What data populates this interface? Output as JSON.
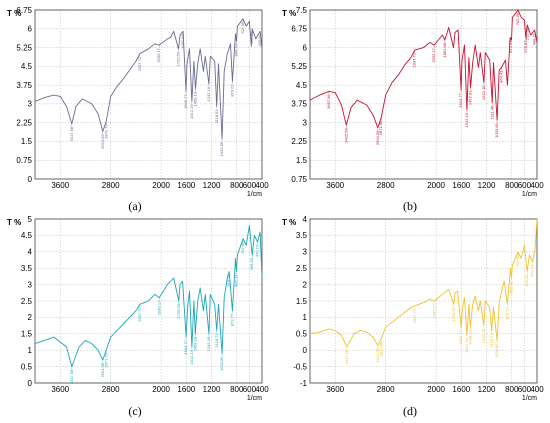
{
  "chart_data": [
    {
      "type": "line",
      "caption": "(a)",
      "ylabel": "T %",
      "xlabel": "1/cm",
      "xlim": [
        4000,
        400
      ],
      "ylim": [
        0,
        6.75
      ],
      "x_ticks": [
        3600,
        2800,
        2000,
        1600,
        1200,
        800,
        600,
        400
      ],
      "y_ticks": [
        0,
        0.75,
        1.5,
        2.25,
        3,
        3.75,
        4.5,
        5.25,
        6,
        6.75
      ],
      "y_tick_labels": [
        "0",
        "0.75",
        "1.5",
        "2.25",
        "3",
        "3.75",
        "4.5",
        "5.25",
        "6",
        "6.75"
      ],
      "color": "#6b6c8e",
      "series": [
        {
          "x": [
            4000,
            3850,
            3700,
            3600,
            3500,
            3417,
            3350,
            3250,
            3100,
            3000,
            2924,
            2871,
            2800,
            2700,
            2600,
            2500,
            2400,
            2340,
            2200,
            2100,
            2030,
            1900,
            1850,
            1800,
            1725,
            1700,
            1651,
            1606,
            1590,
            1550,
            1512,
            1480,
            1455,
            1420,
            1380,
            1330,
            1300,
            1242,
            1220,
            1150,
            1118,
            1090,
            1033,
            1000,
            950,
            900,
            870,
            820,
            804,
            790,
            700,
            650,
            600,
            570,
            555,
            500,
            430,
            400
          ],
          "y": [
            3.1,
            3.25,
            3.35,
            3.3,
            2.9,
            2.2,
            2.9,
            3.2,
            3.0,
            2.6,
            1.9,
            2.3,
            3.3,
            3.7,
            4.0,
            4.35,
            4.7,
            5.0,
            5.2,
            5.4,
            5.35,
            5.6,
            5.65,
            5.9,
            5.2,
            5.75,
            5.9,
            3.5,
            4.6,
            5.2,
            3.1,
            4.7,
            3.6,
            4.6,
            5.2,
            4.3,
            4.9,
            3.8,
            4.9,
            4.7,
            2.9,
            4.6,
            1.6,
            4.3,
            5.0,
            5.4,
            3.9,
            5.8,
            5.5,
            6.1,
            6.4,
            6.1,
            6.3,
            5.3,
            6.0,
            5.6,
            5.9,
            5.2
          ]
        }
      ],
      "peaks": [
        {
          "x": 3417,
          "label": "3417.98"
        },
        {
          "x": 2924,
          "label": "2924.09"
        },
        {
          "x": 2871,
          "label": "2871.79"
        },
        {
          "x": 2340,
          "label": "2337.72"
        },
        {
          "x": 2030,
          "label": "2030.17"
        },
        {
          "x": 1725,
          "label": "1720.50"
        },
        {
          "x": 1651,
          "label": "1651.66"
        },
        {
          "x": 1606,
          "label": "1606.77"
        },
        {
          "x": 1512,
          "label": "1512.19"
        },
        {
          "x": 1455,
          "label": "1458.13"
        },
        {
          "x": 1242,
          "label": "1242.16"
        },
        {
          "x": 1118,
          "label": "1118.51"
        },
        {
          "x": 1033,
          "label": "1033.85"
        },
        {
          "x": 870,
          "label": "870.67"
        },
        {
          "x": 804,
          "label": "804.23"
        },
        {
          "x": 700,
          "label": "702.99"
        },
        {
          "x": 555,
          "label": "555.50"
        },
        {
          "x": 430,
          "label": "435.91"
        }
      ]
    },
    {
      "type": "line",
      "caption": "(b)",
      "ylabel": "T %",
      "xlabel": "1/cm",
      "xlim": [
        4000,
        400
      ],
      "ylim": [
        0.75,
        7.5
      ],
      "x_ticks": [
        3600,
        2800,
        2000,
        1600,
        1200,
        800,
        600,
        400
      ],
      "y_ticks": [
        0.75,
        1.5,
        2.25,
        3,
        3.75,
        4.5,
        5.25,
        6,
        6.75,
        7.5
      ],
      "y_tick_labels": [
        "0.75",
        "1.5",
        "2.25",
        "3",
        "3.75",
        "4.5",
        "5.25",
        "6",
        "6.75",
        "7.5"
      ],
      "color": "#c8102e",
      "series": [
        {
          "x": [
            4000,
            3850,
            3700,
            3600,
            3500,
            3425,
            3350,
            3250,
            3100,
            3000,
            2924,
            2871,
            2800,
            2700,
            2600,
            2500,
            2400,
            2340,
            2200,
            2100,
            2030,
            1900,
            1861,
            1800,
            1725,
            1700,
            1651,
            1604,
            1590,
            1550,
            1512,
            1480,
            1453,
            1420,
            1380,
            1330,
            1300,
            1242,
            1220,
            1150,
            1111,
            1090,
            1033,
            1000,
            964,
            900,
            870,
            825,
            805,
            790,
            700,
            650,
            600,
            578,
            555,
            500,
            438,
            400
          ],
          "y": [
            3.9,
            4.1,
            4.25,
            4.2,
            3.7,
            2.9,
            3.6,
            3.9,
            3.7,
            3.3,
            2.8,
            3.2,
            4.1,
            4.6,
            4.9,
            5.3,
            5.6,
            5.9,
            6.0,
            6.2,
            6.1,
            6.5,
            6.3,
            6.8,
            6.0,
            6.6,
            6.7,
            4.3,
            5.5,
            6.1,
            3.5,
            5.6,
            4.4,
            5.4,
            6.1,
            5.2,
            5.8,
            4.6,
            5.8,
            5.5,
            3.8,
            5.4,
            3.1,
            5.1,
            5.2,
            5.5,
            4.5,
            6.4,
            6.3,
            7.2,
            7.5,
            7.2,
            7.1,
            6.4,
            6.9,
            6.5,
            6.7,
            6.2
          ]
        }
      ],
      "peaks": [
        {
          "x": 3700,
          "label": "3657.96"
        },
        {
          "x": 3425,
          "label": "3425.58"
        },
        {
          "x": 2924,
          "label": "2924.09"
        },
        {
          "x": 2871,
          "label": "2871.96"
        },
        {
          "x": 2340,
          "label": "2337.72"
        },
        {
          "x": 2030,
          "label": "2032.17"
        },
        {
          "x": 1861,
          "label": "1861.68"
        },
        {
          "x": 1604,
          "label": "1604.77"
        },
        {
          "x": 1512,
          "label": "1512.19"
        },
        {
          "x": 1453,
          "label": "1452.81"
        },
        {
          "x": 1242,
          "label": "1242.16"
        },
        {
          "x": 1111,
          "label": "1111.46"
        },
        {
          "x": 1033,
          "label": "1033.85"
        },
        {
          "x": 964,
          "label": "964.41"
        },
        {
          "x": 825,
          "label": "825.53"
        },
        {
          "x": 700,
          "label": "702.99"
        },
        {
          "x": 578,
          "label": "578.83"
        },
        {
          "x": 555,
          "label": "555.50"
        },
        {
          "x": 438,
          "label": "438.21"
        }
      ]
    },
    {
      "type": "line",
      "caption": "(c)",
      "ylabel": "T %",
      "xlabel": "1/cm",
      "xlim": [
        4000,
        400
      ],
      "ylim": [
        0,
        5
      ],
      "x_ticks": [
        3600,
        2800,
        2000,
        1600,
        1200,
        800,
        600,
        400
      ],
      "y_ticks": [
        0,
        0.5,
        1,
        1.5,
        2,
        2.5,
        3,
        3.5,
        4,
        4.5,
        5
      ],
      "y_tick_labels": [
        "0",
        "0.5",
        "1",
        "1.5",
        "2",
        "2.5",
        "3",
        "3.5",
        "4",
        "4.5",
        "5"
      ],
      "color": "#1aa6b7",
      "series": [
        {
          "x": [
            4000,
            3850,
            3700,
            3600,
            3500,
            3417,
            3300,
            3200,
            3100,
            3000,
            2924,
            2871,
            2800,
            2700,
            2600,
            2500,
            2400,
            2337,
            2200,
            2100,
            2030,
            1900,
            1800,
            1720,
            1700,
            1660,
            1604,
            1580,
            1550,
            1512,
            1480,
            1458,
            1420,
            1380,
            1330,
            1300,
            1242,
            1220,
            1150,
            1118,
            1090,
            1033,
            1000,
            950,
            920,
            870,
            820,
            804,
            790,
            700,
            650,
            600,
            555,
            520,
            470,
            430,
            400
          ],
          "y": [
            1.2,
            1.3,
            1.4,
            1.25,
            1.1,
            0.5,
            1.1,
            1.3,
            1.2,
            1.0,
            0.7,
            1.0,
            1.4,
            1.6,
            1.8,
            2.0,
            2.2,
            2.4,
            2.5,
            2.7,
            2.6,
            3.0,
            3.2,
            2.5,
            3.0,
            3.1,
            1.4,
            2.3,
            2.8,
            1.1,
            2.5,
            1.5,
            2.5,
            2.9,
            2.2,
            2.7,
            1.5,
            2.7,
            2.4,
            1.6,
            2.4,
            0.9,
            2.6,
            3.2,
            3.4,
            2.2,
            3.8,
            3.4,
            3.9,
            4.4,
            4.2,
            4.8,
            3.9,
            4.5,
            4.3,
            4.6,
            3.2
          ]
        }
      ],
      "peaks": [
        {
          "x": 3417,
          "label": "3417.98"
        },
        {
          "x": 2924,
          "label": "2924.09"
        },
        {
          "x": 2871,
          "label": "2871.79"
        },
        {
          "x": 2337,
          "label": "2337.72"
        },
        {
          "x": 2030,
          "label": "2030.17"
        },
        {
          "x": 1720,
          "label": "1720.50"
        },
        {
          "x": 1604,
          "label": "1604.77"
        },
        {
          "x": 1512,
          "label": "1512.19"
        },
        {
          "x": 1458,
          "label": "1458.18"
        },
        {
          "x": 1242,
          "label": "1242.16"
        },
        {
          "x": 1118,
          "label": "1118.71"
        },
        {
          "x": 1033,
          "label": "1033.85"
        },
        {
          "x": 920,
          "label": "916.18"
        },
        {
          "x": 870,
          "label": "873.77"
        },
        {
          "x": 804,
          "label": "802.31"
        },
        {
          "x": 700,
          "label": "702.99"
        },
        {
          "x": 555,
          "label": "555.50"
        },
        {
          "x": 470,
          "label": "470.73"
        }
      ]
    },
    {
      "type": "line",
      "caption": "(d)",
      "ylabel": "T %",
      "xlabel": "1/cm",
      "xlim": [
        4000,
        400
      ],
      "ylim": [
        -1,
        4
      ],
      "x_ticks": [
        3600,
        2800,
        2000,
        1600,
        1200,
        800,
        600,
        400
      ],
      "y_ticks": [
        -1,
        -0.5,
        0,
        0.5,
        1,
        1.5,
        2,
        2.5,
        3,
        3.5,
        4
      ],
      "y_tick_labels": [
        "-1",
        "-0.5",
        "0",
        "0.5",
        "1",
        "1.5",
        "2",
        "2.5",
        "3",
        "3.5",
        "4"
      ],
      "color": "#f2c12e",
      "series": [
        {
          "x": [
            4000,
            3850,
            3700,
            3600,
            3500,
            3417,
            3300,
            3200,
            3100,
            3000,
            2924,
            2871,
            2800,
            2700,
            2600,
            2500,
            2400,
            2337,
            2200,
            2100,
            2030,
            1900,
            1800,
            1720,
            1700,
            1660,
            1604,
            1580,
            1550,
            1512,
            1480,
            1458,
            1420,
            1380,
            1330,
            1300,
            1242,
            1220,
            1150,
            1118,
            1090,
            1033,
            1000,
            950,
            920,
            870,
            820,
            804,
            790,
            700,
            650,
            600,
            555,
            520,
            470,
            430,
            400
          ],
          "y": [
            0.5,
            0.55,
            0.65,
            0.6,
            0.45,
            0.1,
            0.5,
            0.6,
            0.55,
            0.4,
            0.15,
            0.35,
            0.7,
            0.85,
            1.0,
            1.15,
            1.3,
            1.35,
            1.45,
            1.55,
            1.5,
            1.7,
            1.85,
            1.4,
            1.75,
            1.8,
            0.7,
            1.3,
            1.6,
            0.45,
            1.4,
            0.7,
            1.4,
            1.65,
            1.2,
            1.5,
            0.75,
            1.5,
            1.3,
            0.6,
            1.3,
            0.3,
            1.45,
            1.9,
            2.1,
            1.4,
            2.5,
            2.2,
            2.6,
            3.0,
            2.8,
            3.2,
            2.4,
            2.9,
            2.7,
            3.1,
            4.0
          ]
        }
      ],
      "peaks": [
        {
          "x": 3417,
          "label": "3417.98"
        },
        {
          "x": 2924,
          "label": "2924.09"
        },
        {
          "x": 2871,
          "label": "2871.86"
        },
        {
          "x": 2337,
          "label": "2337.72"
        },
        {
          "x": 2030,
          "label": "2030.17"
        },
        {
          "x": 1720,
          "label": "1720.50"
        },
        {
          "x": 1604,
          "label": "1604.77"
        },
        {
          "x": 1512,
          "label": "1512.19"
        },
        {
          "x": 1458,
          "label": "1458.18"
        },
        {
          "x": 1242,
          "label": "1242.16"
        },
        {
          "x": 1118,
          "label": "1118.71"
        },
        {
          "x": 1033,
          "label": "1033.85"
        },
        {
          "x": 870,
          "label": "873.77"
        },
        {
          "x": 804,
          "label": "802.31"
        },
        {
          "x": 700,
          "label": "702.99"
        },
        {
          "x": 555,
          "label": "555.50"
        },
        {
          "x": 470,
          "label": "470.73"
        }
      ]
    }
  ]
}
